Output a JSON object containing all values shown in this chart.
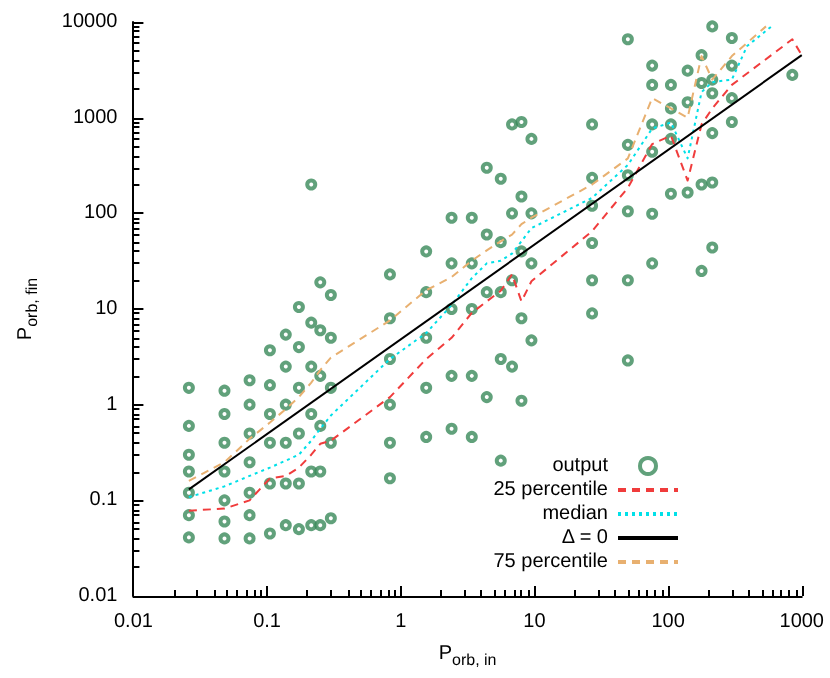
{
  "chart_data": {
    "type": "scatter",
    "xlabel": "P$_{orb, in}$",
    "ylabel": "P$_{orb, fin}$",
    "log": "xy",
    "grid": false,
    "legend": "bottom right",
    "marker": "circle",
    "xlim": [
      0.01,
      1000
    ],
    "ylim": [
      0.01,
      10000
    ],
    "xticks": [
      0.01,
      0.1,
      1,
      10,
      100,
      1000
    ],
    "yticks": [
      0.01,
      0.1,
      1,
      10,
      100,
      1000,
      10000
    ],
    "series": [
      {
        "name": "output",
        "color": "#3a8a5a",
        "x": [
          0.026,
          0.026,
          0.026,
          0.026,
          0.026,
          0.026,
          0.026,
          0.048,
          0.048,
          0.048,
          0.048,
          0.048,
          0.048,
          0.048,
          0.074,
          0.074,
          0.074,
          0.074,
          0.074,
          0.074,
          0.074,
          0.105,
          0.105,
          0.105,
          0.105,
          0.105,
          0.105,
          0.138,
          0.138,
          0.138,
          0.138,
          0.138,
          0.138,
          0.173,
          0.173,
          0.173,
          0.173,
          0.173,
          0.173,
          0.214,
          0.214,
          0.214,
          0.214,
          0.214,
          0.214,
          0.25,
          0.25,
          0.25,
          0.25,
          0.25,
          0.25,
          0.3,
          0.3,
          0.3,
          0.3,
          0.3,
          0.83,
          0.83,
          0.83,
          0.83,
          0.83,
          0.83,
          1.55,
          1.55,
          1.55,
          1.55,
          1.55,
          2.4,
          2.4,
          2.4,
          2.4,
          2.4,
          3.4,
          3.4,
          3.4,
          3.4,
          3.4,
          4.4,
          4.4,
          4.4,
          4.4,
          5.6,
          5.6,
          5.6,
          5.6,
          5.6,
          6.8,
          6.8,
          6.8,
          6.8,
          8,
          8,
          8,
          8,
          8,
          9.5,
          9.5,
          9.5,
          9.5,
          27,
          27,
          27,
          27,
          27,
          27,
          50,
          50,
          50,
          50,
          50,
          50,
          76,
          76,
          76,
          76,
          76,
          76,
          105,
          105,
          105,
          105,
          105,
          140,
          140,
          140,
          178,
          178,
          178,
          178,
          214,
          214,
          214,
          214,
          214,
          214,
          300,
          300,
          300,
          300,
          850
        ],
        "values": [
          1.5,
          0.6,
          0.3,
          0.2,
          0.12,
          0.07,
          0.041,
          1.4,
          0.8,
          0.4,
          0.2,
          0.1,
          0.06,
          0.04,
          1.8,
          1,
          0.5,
          0.25,
          0.12,
          0.07,
          0.04,
          3.7,
          1.6,
          0.8,
          0.4,
          0.15,
          0.045,
          5.4,
          2.5,
          1,
          0.4,
          0.15,
          0.055,
          10.5,
          4,
          1.5,
          0.5,
          0.15,
          0.05,
          200,
          7.2,
          2.5,
          0.8,
          0.2,
          0.055,
          19,
          6,
          2,
          0.6,
          0.2,
          0.055,
          14,
          5,
          1.5,
          0.4,
          0.065,
          23,
          8,
          3,
          1,
          0.4,
          0.17,
          40,
          15,
          5,
          1.5,
          0.46,
          90,
          30,
          10,
          2,
          0.56,
          90,
          30,
          10,
          2,
          0.46,
          300,
          60,
          15,
          1.2,
          230,
          50,
          15,
          3,
          0.26,
          850,
          100,
          20,
          2.5,
          900,
          150,
          40,
          8,
          1.1,
          600,
          100,
          30,
          4.7,
          850,
          235,
          120,
          49,
          20,
          9,
          6600,
          520,
          250,
          105,
          20,
          2.9,
          3500,
          2200,
          850,
          440,
          99,
          30,
          2200,
          1250,
          850,
          600,
          160,
          3100,
          1450,
          165,
          4500,
          2300,
          200,
          25,
          9000,
          2500,
          1800,
          690,
          210,
          44,
          6800,
          3500,
          1600,
          900,
          2800
        ]
      },
      {
        "name": "25 percentile",
        "type": "line",
        "color": "#f03c3c",
        "marker": "none",
        "line_style": "dashed",
        "x": [
          0.026,
          0.048,
          0.074,
          0.105,
          0.138,
          0.173,
          0.214,
          0.25,
          0.3,
          0.83,
          1.55,
          2.4,
          3.4,
          4.4,
          5.6,
          6.8,
          8,
          9.5,
          27,
          50,
          76,
          105,
          140,
          178,
          214,
          300,
          850,
          1000
        ],
        "values": [
          0.078,
          0.082,
          0.1,
          0.17,
          0.18,
          0.22,
          0.3,
          0.39,
          0.42,
          1.2,
          3,
          5,
          9.1,
          12,
          15.5,
          23,
          12,
          19.5,
          65,
          185,
          530,
          650,
          220,
          850,
          1250,
          2200,
          6600,
          4500
        ]
      },
      {
        "name": "median",
        "type": "line",
        "color": "#00e0e8",
        "marker": "none",
        "line_style": "dotted",
        "x": [
          0.026,
          0.048,
          0.074,
          0.105,
          0.138,
          0.173,
          0.214,
          0.25,
          0.3,
          0.83,
          1.55,
          2.4,
          3.4,
          4.4,
          5.6,
          6.8,
          8,
          9.5,
          27,
          50,
          76,
          105,
          140,
          178,
          214,
          300,
          390,
          600
        ],
        "values": [
          0.108,
          0.14,
          0.18,
          0.22,
          0.26,
          0.3,
          0.42,
          0.56,
          0.77,
          3,
          5.6,
          11,
          21,
          30,
          32,
          38,
          51,
          70,
          145,
          320,
          770,
          890,
          375,
          1850,
          2350,
          2500,
          5600,
          9100
        ]
      },
      {
        "name": "Δ = 0",
        "type": "line",
        "color": "#000000",
        "marker": "none",
        "line_style": "solid",
        "x": [
          0.026,
          1000
        ],
        "values": [
          0.13,
          4500
        ]
      },
      {
        "name": "75 percentile",
        "type": "line",
        "color": "#e8b070",
        "marker": "none",
        "line_style": "dashed",
        "x": [
          0.026,
          0.048,
          0.074,
          0.105,
          0.138,
          0.173,
          0.214,
          0.25,
          0.3,
          0.83,
          1.55,
          2.4,
          3.4,
          4.4,
          5.6,
          6.8,
          8,
          9.5,
          27,
          50,
          76,
          105,
          140,
          178,
          214,
          300,
          540
        ],
        "values": [
          0.16,
          0.25,
          0.44,
          0.65,
          0.9,
          1.2,
          1.7,
          2.3,
          3.1,
          7.6,
          15.7,
          21.6,
          32,
          41,
          51,
          60,
          77,
          90,
          200,
          375,
          1600,
          1250,
          1000,
          4400,
          2500,
          4400,
          9000
        ]
      }
    ]
  }
}
